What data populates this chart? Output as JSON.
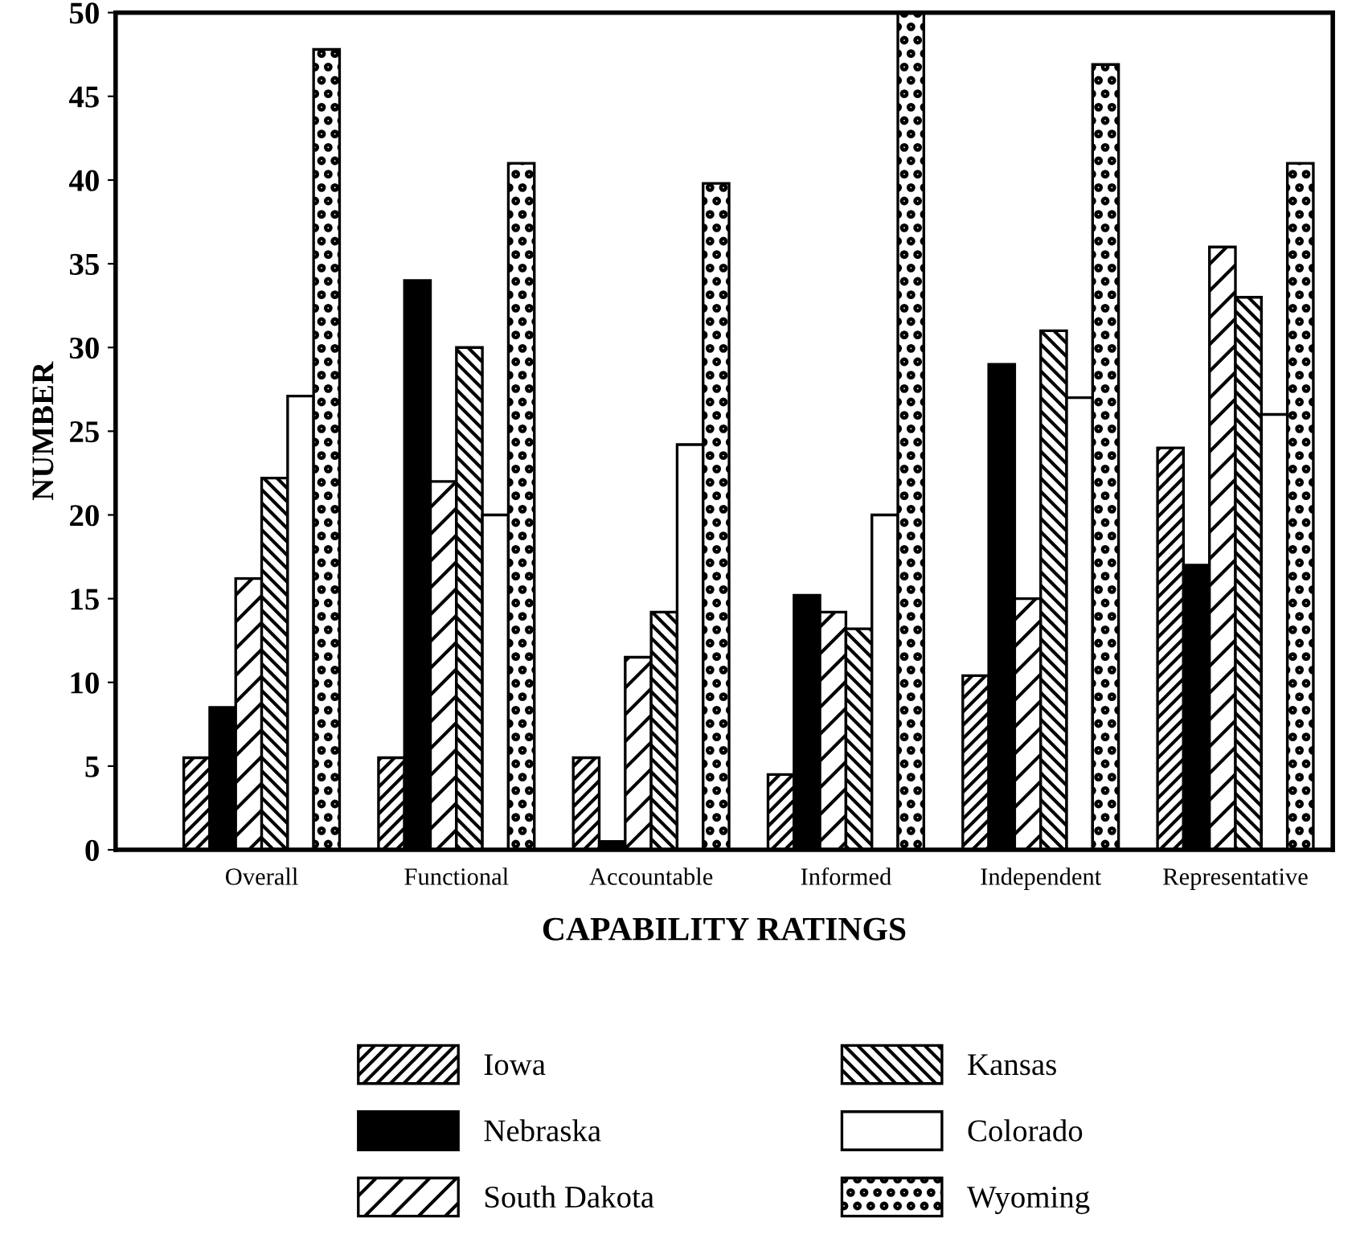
{
  "chart_data": {
    "type": "bar",
    "xlabel": "CAPABILITY RATINGS",
    "ylabel": "NUMBER",
    "categories": [
      "Overall",
      "Functional",
      "Accountable",
      "Informed",
      "Independent",
      "Representative"
    ],
    "series": [
      {
        "name": "Iowa",
        "color": "#000000",
        "values": [
          5.5,
          5.5,
          5.5,
          4.5,
          10.4,
          24
        ]
      },
      {
        "name": "Nebraska",
        "color": "#000000",
        "values": [
          8.5,
          34,
          0.5,
          15.2,
          29,
          17
        ]
      },
      {
        "name": "South Dakota",
        "color": "#000000",
        "values": [
          16.2,
          22,
          11.5,
          14.2,
          15,
          36
        ]
      },
      {
        "name": "Kansas",
        "color": "#000000",
        "values": [
          22.2,
          30,
          14.2,
          13.2,
          31,
          33
        ]
      },
      {
        "name": "Colorado",
        "color": "#ffffff",
        "values": [
          27.1,
          20,
          24.2,
          20,
          27,
          26
        ]
      },
      {
        "name": "Wyoming",
        "color": "#000000",
        "values": [
          47.8,
          41,
          39.8,
          50,
          46.9,
          41
        ]
      }
    ],
    "ylim": [
      0,
      50
    ],
    "yticks": [
      0,
      5,
      10,
      15,
      20,
      25,
      30,
      35,
      40,
      45,
      50
    ],
    "grid": false,
    "legend": "bottom"
  }
}
